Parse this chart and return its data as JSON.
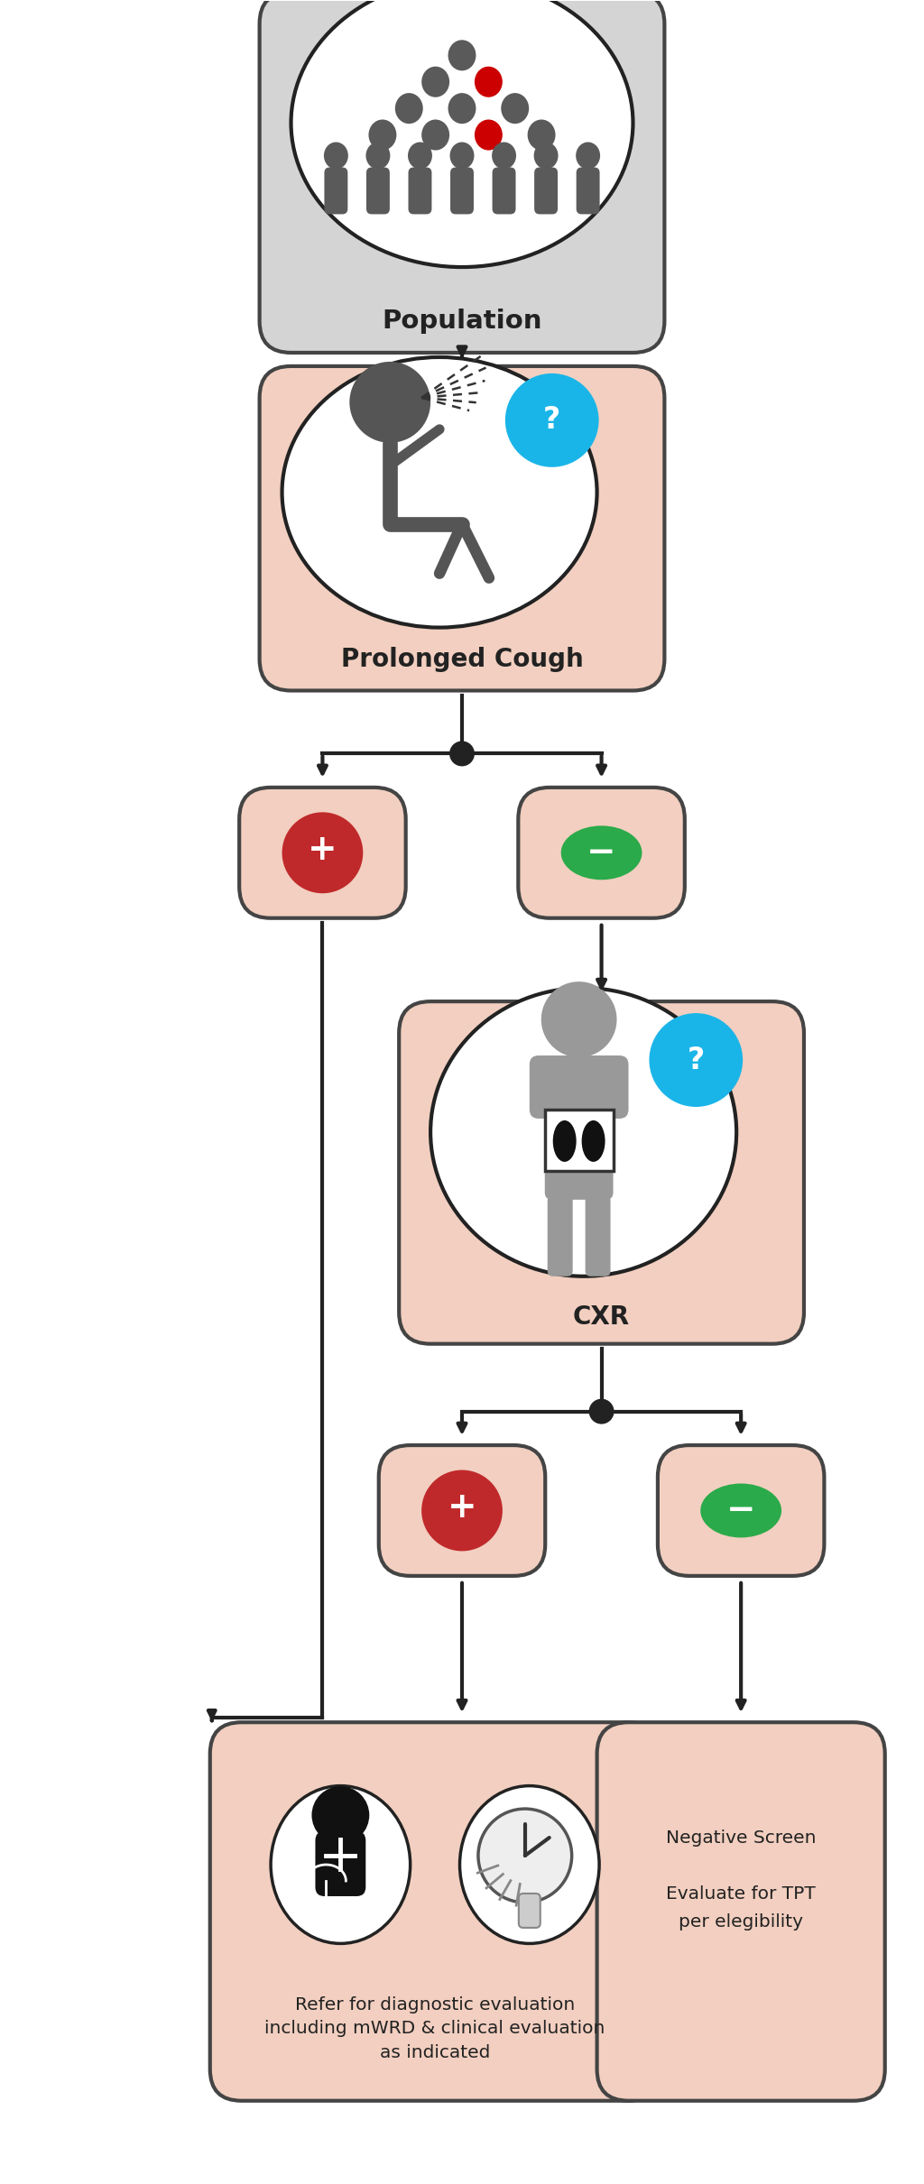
{
  "bg_color": "#ffffff",
  "box_salmon": "#f2cfc0",
  "box_gray": "#d4d4d4",
  "box_stroke": "#444444",
  "arrow_color": "#222222",
  "blue_circle": "#1ab5e8",
  "red_circle": "#c0292b",
  "green_circle": "#2aaa4a",
  "people_gray": "#5a5a5a",
  "people_red": "#cc0000",
  "pop_label": "Population",
  "cough_label": "Prolonged Cough",
  "cxr_label": "CXR",
  "refer_label": "Refer for diagnostic evaluation\nincluding mWRD & clinical evaluation\nas indicated",
  "neg_screen_label": "Negative Screen\n\nEvaluate for TPT\nper elegibility",
  "fig_w": 10.24,
  "fig_h": 24.21,
  "dpi": 100
}
